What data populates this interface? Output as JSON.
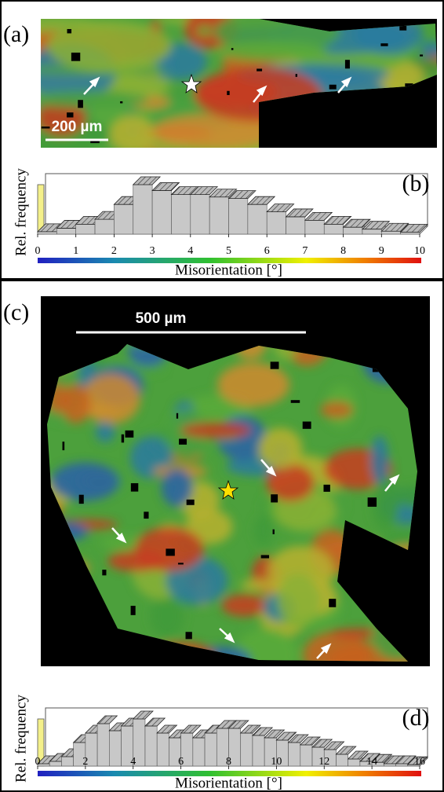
{
  "panels": {
    "a": {
      "label": "(a)",
      "scale_bar": "200 µm"
    },
    "c": {
      "label": "(c)",
      "scale_bar": "500 µm"
    }
  },
  "chart_data": [
    {
      "type": "histogram",
      "label": "(b)",
      "y_label": "Rel. frequency",
      "x_label": "Misorientation [°]",
      "bins": [
        0,
        0.5,
        1,
        1.5,
        2,
        2.5,
        3,
        3.5,
        4,
        4.5,
        5,
        5.5,
        6,
        6.5,
        7,
        7.5,
        8,
        8.5,
        9,
        9.5,
        10
      ],
      "values": [
        5,
        12,
        20,
        30,
        60,
        100,
        88,
        80,
        80,
        75,
        72,
        60,
        45,
        35,
        28,
        20,
        14,
        10,
        6,
        4
      ],
      "color": "#c8c8c8",
      "xlim": [
        0,
        10
      ],
      "ylim": [
        0,
        100
      ],
      "xticks": [
        0,
        1,
        2,
        3,
        4,
        5,
        6,
        7,
        8,
        9,
        10
      ]
    },
    {
      "type": "histogram",
      "label": "(d)",
      "y_label": "Rel. frequency",
      "x_label": "Misorientation [°]",
      "bins": [
        0,
        0.5,
        1,
        1.5,
        2,
        2.5,
        3,
        3.5,
        4,
        4.5,
        5,
        5.5,
        6,
        6.5,
        7,
        7.5,
        8,
        8.5,
        9,
        9.5,
        10,
        10.5,
        11,
        11.5,
        12,
        12.5,
        13,
        13.5,
        14,
        14.5,
        15,
        15.5,
        16
      ],
      "values": [
        5,
        10,
        20,
        50,
        70,
        90,
        75,
        85,
        100,
        85,
        70,
        60,
        70,
        60,
        70,
        80,
        80,
        70,
        65,
        60,
        55,
        50,
        45,
        40,
        35,
        25,
        15,
        10,
        8,
        5,
        5,
        3
      ],
      "color": "#c8c8c8",
      "xlim": [
        0,
        16
      ],
      "ylim": [
        0,
        100
      ],
      "xticks": [
        0,
        2,
        4,
        6,
        8,
        10,
        12,
        14,
        16
      ]
    }
  ]
}
